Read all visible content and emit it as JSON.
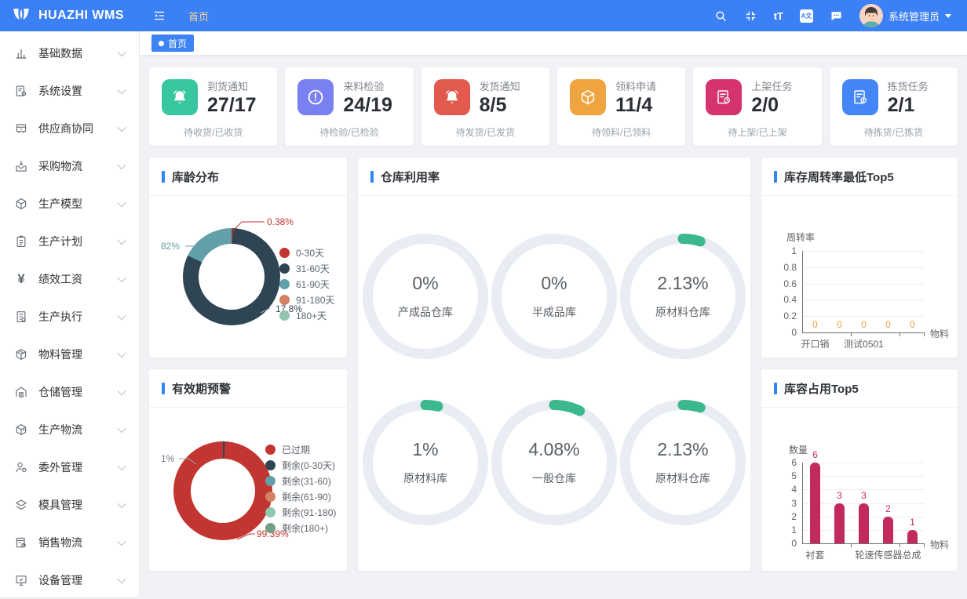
{
  "header": {
    "brand": "HUAZHI WMS",
    "nav_tab": "首页",
    "user_name": "系统管理员",
    "font_icon_label": "tT",
    "translate_icon_label": "A文"
  },
  "tagbar": {
    "active_tag": "首页"
  },
  "sidebar": {
    "items": [
      {
        "label": "基础数据",
        "icon": "bar-chart-icon"
      },
      {
        "label": "系统设置",
        "icon": "doc-gear-icon"
      },
      {
        "label": "供应商协同",
        "icon": "cabinet-icon"
      },
      {
        "label": "采购物流",
        "icon": "inbox-arrow-icon"
      },
      {
        "label": "生产模型",
        "icon": "cube-icon"
      },
      {
        "label": "生产计划",
        "icon": "clipboard-icon"
      },
      {
        "label": "绩效工资",
        "icon": "yen-icon"
      },
      {
        "label": "生产执行",
        "icon": "doc-icon"
      },
      {
        "label": "物料管理",
        "icon": "package-icon"
      },
      {
        "label": "仓储管理",
        "icon": "warehouse-icon"
      },
      {
        "label": "生产物流",
        "icon": "box-icon"
      },
      {
        "label": "委外管理",
        "icon": "person-gear-icon"
      },
      {
        "label": "模具管理",
        "icon": "mold-icon"
      },
      {
        "label": "销售物流",
        "icon": "doc-gear2-icon"
      },
      {
        "label": "设备管理",
        "icon": "monitor-check-icon"
      }
    ]
  },
  "stat_cards": [
    {
      "title": "到货通知",
      "value": "27/17",
      "subtitle": "待收货/已收货",
      "color": "#38c6a1",
      "icon": "bell-icon"
    },
    {
      "title": "来料检验",
      "value": "24/19",
      "subtitle": "待检验/已检验",
      "color": "#7a7ff2",
      "icon": "exclamation-circle-icon"
    },
    {
      "title": "发货通知",
      "value": "8/5",
      "subtitle": "待发货/已发货",
      "color": "#e15a4d",
      "icon": "bell-icon"
    },
    {
      "title": "领料申请",
      "value": "11/4",
      "subtitle": "待领料/已领料",
      "color": "#f0a43f",
      "icon": "cube-icon"
    },
    {
      "title": "上架任务",
      "value": "2/0",
      "subtitle": "待上架/已上架",
      "color": "#d5336d",
      "icon": "doc-clock-icon"
    },
    {
      "title": "拣货任务",
      "value": "2/1",
      "subtitle": "待拣货/已拣货",
      "color": "#4486f6",
      "icon": "doc-flash-icon"
    }
  ],
  "panels": {
    "age": {
      "title": "库龄分布"
    },
    "utilization": {
      "title": "仓库利用率"
    },
    "turnover": {
      "title": "库存周转率最低Top5"
    },
    "expiry": {
      "title": "有效期预警"
    },
    "capacity": {
      "title": "库容占用Top5"
    }
  },
  "chart_data": [
    {
      "id": "age_distribution",
      "type": "pie",
      "title": "库龄分布",
      "legend": [
        "0-30天",
        "31-60天",
        "61-90天",
        "91-180天",
        "180+天"
      ],
      "legend_colors": [
        "#c23531",
        "#2f4554",
        "#61a0a8",
        "#d48265",
        "#91c7ae"
      ],
      "slices": [
        {
          "name": "0-30天",
          "pct": 0.38,
          "color": "#c23531"
        },
        {
          "name": "31-60天",
          "pct": 81.82,
          "color": "#2f4554"
        },
        {
          "name": "61-90天",
          "pct": 17.8,
          "color": "#61a0a8"
        }
      ],
      "labels_shown": [
        "0.38%",
        "82%",
        "17.8%"
      ]
    },
    {
      "id": "warehouse_utilization",
      "type": "gauge",
      "title": "仓库利用率",
      "arc_color": "#3bb98d",
      "track_color": "#e9ecf3",
      "gauges": [
        {
          "name": "产成品仓库",
          "pct": 0,
          "pct_label": "0%"
        },
        {
          "name": "半成品库",
          "pct": 0,
          "pct_label": "0%"
        },
        {
          "name": "原材料仓库",
          "pct": 2.13,
          "pct_label": "2.13%"
        },
        {
          "name": "原材料库",
          "pct": 1,
          "pct_label": "1%"
        },
        {
          "name": "一般仓库",
          "pct": 4.08,
          "pct_label": "4.08%"
        },
        {
          "name": "原材料仓库",
          "pct": 2.13,
          "pct_label": "2.13%"
        }
      ]
    },
    {
      "id": "turnover_lowest_top5",
      "type": "bar",
      "title": "库存周转率最低Top5",
      "ylabel": "周转率",
      "xlabel": "物料",
      "ylim": [
        0,
        1
      ],
      "y_ticks": [
        1,
        0.8,
        0.6,
        0.4,
        0.2,
        0
      ],
      "categories_shown": [
        {
          "index": 0,
          "label": "开口销"
        },
        {
          "index": 2,
          "label": "测试0501"
        }
      ],
      "values": [
        0,
        0,
        0,
        0,
        0
      ],
      "bar_color": "#c22a5b",
      "value_label_color": "#ef9f40"
    },
    {
      "id": "expiry_warning",
      "type": "pie",
      "title": "有效期预警",
      "legend": [
        "已过期",
        "剩余(0-30天)",
        "剩余(31-60)",
        "剩余(61-90)",
        "剩余(91-180)",
        "剩余(180+)"
      ],
      "legend_colors": [
        "#c23531",
        "#2f4554",
        "#61a0a8",
        "#d48265",
        "#91c7ae",
        "#749f83"
      ],
      "slices": [
        {
          "name": "剩余(0-30天)",
          "pct": 0.61,
          "color": "#2f4554"
        },
        {
          "name": "已过期",
          "pct": 99.39,
          "color": "#c23531"
        }
      ],
      "labels_shown": [
        "1%",
        "99.39%"
      ]
    },
    {
      "id": "capacity_top5",
      "type": "bar",
      "title": "库容占用Top5",
      "ylabel": "数量",
      "xlabel": "物料",
      "ylim": [
        0,
        6
      ],
      "y_ticks": [
        6,
        5,
        4,
        3,
        2,
        1,
        0
      ],
      "categories_shown": [
        {
          "index": 0,
          "label": "衬套"
        },
        {
          "index": 3,
          "label": "轮速传感器总成"
        }
      ],
      "values": [
        6,
        3,
        3,
        2,
        1
      ],
      "bar_color": "#c22a5b",
      "value_label_color": "#c22a5b"
    }
  ]
}
